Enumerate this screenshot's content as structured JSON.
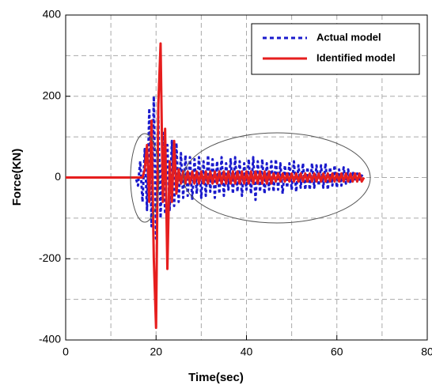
{
  "chart_data": {
    "type": "line",
    "xlabel": "Time(sec)",
    "ylabel": "Force(KN)",
    "x": [
      0,
      0.5,
      1,
      1.5,
      2,
      2.5,
      3,
      3.5,
      4,
      4.5,
      5,
      5.5,
      6,
      6.5,
      7,
      7.5,
      8,
      8.5,
      9,
      9.5,
      10,
      10.5,
      11,
      11.5,
      12,
      12.5,
      13,
      13.5,
      14,
      14.5,
      15,
      15.5,
      16,
      16.5,
      17,
      17.5,
      18,
      18.5,
      19,
      19.5,
      20,
      20.5,
      21,
      21.5,
      22,
      22.5,
      23,
      23.5,
      24,
      24.5,
      25,
      25.5,
      26,
      26.5,
      27,
      27.5,
      28,
      28.5,
      29,
      29.5,
      30,
      30.5,
      31,
      31.5,
      32,
      32.5,
      33,
      33.5,
      34,
      34.5,
      35,
      35.5,
      36,
      36.5,
      37,
      37.5,
      38,
      38.5,
      39,
      39.5,
      40,
      40.5,
      41,
      41.5,
      42,
      42.5,
      43,
      43.5,
      44,
      44.5,
      45,
      45.5,
      46,
      46.5,
      47,
      47.5,
      48,
      48.5,
      49,
      49.5,
      50,
      50.5,
      51,
      51.5,
      52,
      52.5,
      53,
      53.5,
      54,
      54.5,
      55,
      55.5,
      56,
      56.5,
      57,
      57.5,
      58,
      58.5,
      59,
      59.5,
      60,
      60.5,
      61,
      61.5,
      62,
      62.5,
      63,
      63.5,
      64,
      64.5,
      65,
      65.5,
      66
    ],
    "series": [
      {
        "name": "Actual model",
        "color": "#1a1acc",
        "style": "dotted",
        "values": [
          0,
          0,
          0,
          0,
          0,
          0,
          0,
          0,
          0,
          0,
          0,
          0,
          0,
          0,
          0,
          0,
          0,
          0,
          0,
          0,
          0,
          0,
          0,
          0,
          0,
          0,
          0,
          0,
          0,
          0,
          0,
          0,
          -20,
          40,
          -60,
          70,
          -80,
          170,
          -120,
          200,
          -150,
          150,
          -100,
          110,
          -90,
          80,
          -80,
          90,
          -70,
          85,
          -60,
          60,
          -50,
          55,
          -45,
          50,
          -55,
          45,
          -40,
          50,
          -50,
          40,
          -45,
          55,
          -35,
          45,
          -50,
          40,
          -40,
          50,
          -45,
          35,
          -30,
          45,
          -40,
          50,
          -35,
          40,
          -45,
          35,
          -30,
          45,
          -40,
          50,
          -55,
          40,
          -35,
          45,
          -40,
          35,
          -30,
          40,
          -35,
          45,
          -30,
          35,
          -40,
          30,
          -25,
          35,
          -30,
          40,
          -35,
          30,
          -25,
          35,
          -30,
          25,
          -30,
          35,
          -25,
          30,
          -20,
          30,
          -25,
          35,
          -30,
          25,
          -20,
          30,
          -25,
          20,
          -20,
          25,
          -15,
          20,
          -15,
          15,
          -10,
          10,
          -5,
          5,
          0
        ]
      },
      {
        "name": "Identified model",
        "color": "#e61e1e",
        "style": "solid",
        "values": [
          0,
          0,
          0,
          0,
          0,
          0,
          0,
          0,
          0,
          0,
          0,
          0,
          0,
          0,
          0,
          0,
          0,
          0,
          0,
          0,
          0,
          0,
          0,
          0,
          0,
          0,
          0,
          0,
          0,
          0,
          0,
          0,
          0,
          0,
          0,
          20,
          80,
          -60,
          140,
          -200,
          -370,
          180,
          330,
          -60,
          120,
          -225,
          40,
          -60,
          90,
          -40,
          20,
          -15,
          15,
          -15,
          15,
          -15,
          15,
          -15,
          15,
          -15,
          15,
          -15,
          15,
          -15,
          15,
          -15,
          15,
          -15,
          15,
          -15,
          15,
          -15,
          15,
          -15,
          15,
          -15,
          15,
          -15,
          15,
          -15,
          15,
          -15,
          15,
          -15,
          15,
          -15,
          15,
          -15,
          15,
          -15,
          15,
          -15,
          10,
          -10,
          10,
          -10,
          10,
          -10,
          10,
          -10,
          10,
          -10,
          10,
          -10,
          10,
          -10,
          10,
          -10,
          10,
          -10,
          10,
          -10,
          10,
          -10,
          10,
          -10,
          10,
          -10,
          10,
          -10,
          10,
          -10,
          10,
          -10,
          10,
          -10,
          10,
          -10,
          10,
          -10,
          10,
          -10,
          0
        ]
      }
    ],
    "xlim": [
      0,
      80
    ],
    "xticks": [
      0,
      20,
      40,
      60,
      80
    ],
    "ylim": [
      -400,
      400
    ],
    "yticks": [
      -400,
      -200,
      0,
      200,
      400
    ],
    "grid": true,
    "legend": "upper right"
  }
}
